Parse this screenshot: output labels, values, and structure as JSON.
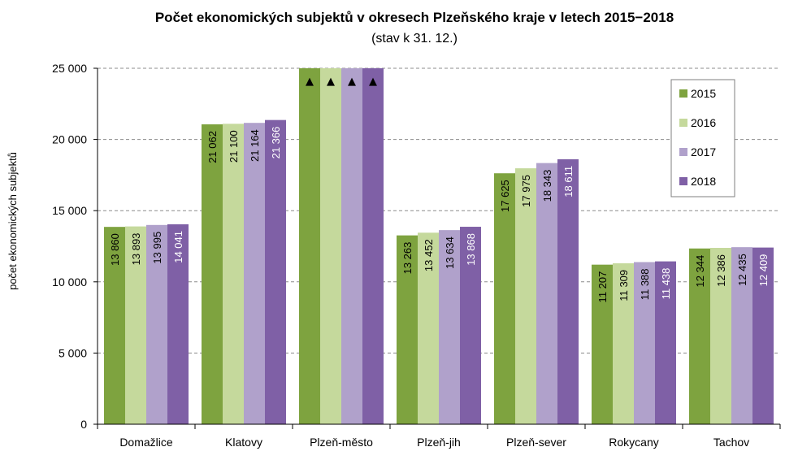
{
  "chart_data": {
    "type": "bar",
    "title": "Počet ekonomických subjektů v okresech Plzeňského kraje v letech 2015−2018",
    "subtitle": "(stav k 31. 12.)",
    "xlabel": "",
    "ylabel": "počet ekonomických subjektů",
    "ylim": [
      0,
      25000
    ],
    "yticks": [
      0,
      5000,
      10000,
      15000,
      20000,
      25000
    ],
    "ytick_labels": [
      "0",
      "5 000",
      "10 000",
      "15 000",
      "20 000",
      "25 000"
    ],
    "grid": true,
    "legend_position": "top-right",
    "categories": [
      "Domažlice",
      "Klatovy",
      "Plzeň-město",
      "Plzeň-jih",
      "Plzeň-sever",
      "Rokycany",
      "Tachov"
    ],
    "series": [
      {
        "name": "2015",
        "color": "#7EA33F",
        "label_color": "#000000",
        "values": [
          13860,
          21062,
          null,
          13263,
          17625,
          11207,
          12344
        ],
        "labels": [
          "13 860",
          "21 062",
          "",
          "13 263",
          "17 625",
          "11 207",
          "12 344"
        ]
      },
      {
        "name": "2016",
        "color": "#C5D99C",
        "label_color": "#000000",
        "values": [
          13893,
          21100,
          null,
          13452,
          17975,
          11309,
          12386
        ],
        "labels": [
          "13 893",
          "21 100",
          "",
          "13 452",
          "17 975",
          "11 309",
          "12 386"
        ]
      },
      {
        "name": "2017",
        "color": "#B0A1CB",
        "label_color": "#000000",
        "values": [
          13995,
          21164,
          null,
          13634,
          18343,
          11388,
          12435
        ],
        "labels": [
          "13 995",
          "21 164",
          "",
          "13 634",
          "18 343",
          "11 388",
          "12 435"
        ]
      },
      {
        "name": "2018",
        "color": "#7F60A6",
        "label_color": "#FFFFFF",
        "values": [
          14041,
          21366,
          null,
          13868,
          18611,
          11438,
          12409
        ],
        "labels": [
          "14 041",
          "21 366",
          "",
          "13 868",
          "18 611",
          "11 438",
          "12 409"
        ]
      }
    ],
    "annotations": [
      {
        "category": "Plzeň-město",
        "note": "values exceed axis maximum; bars truncated with ▲ markers",
        "marker": "▲"
      }
    ]
  }
}
